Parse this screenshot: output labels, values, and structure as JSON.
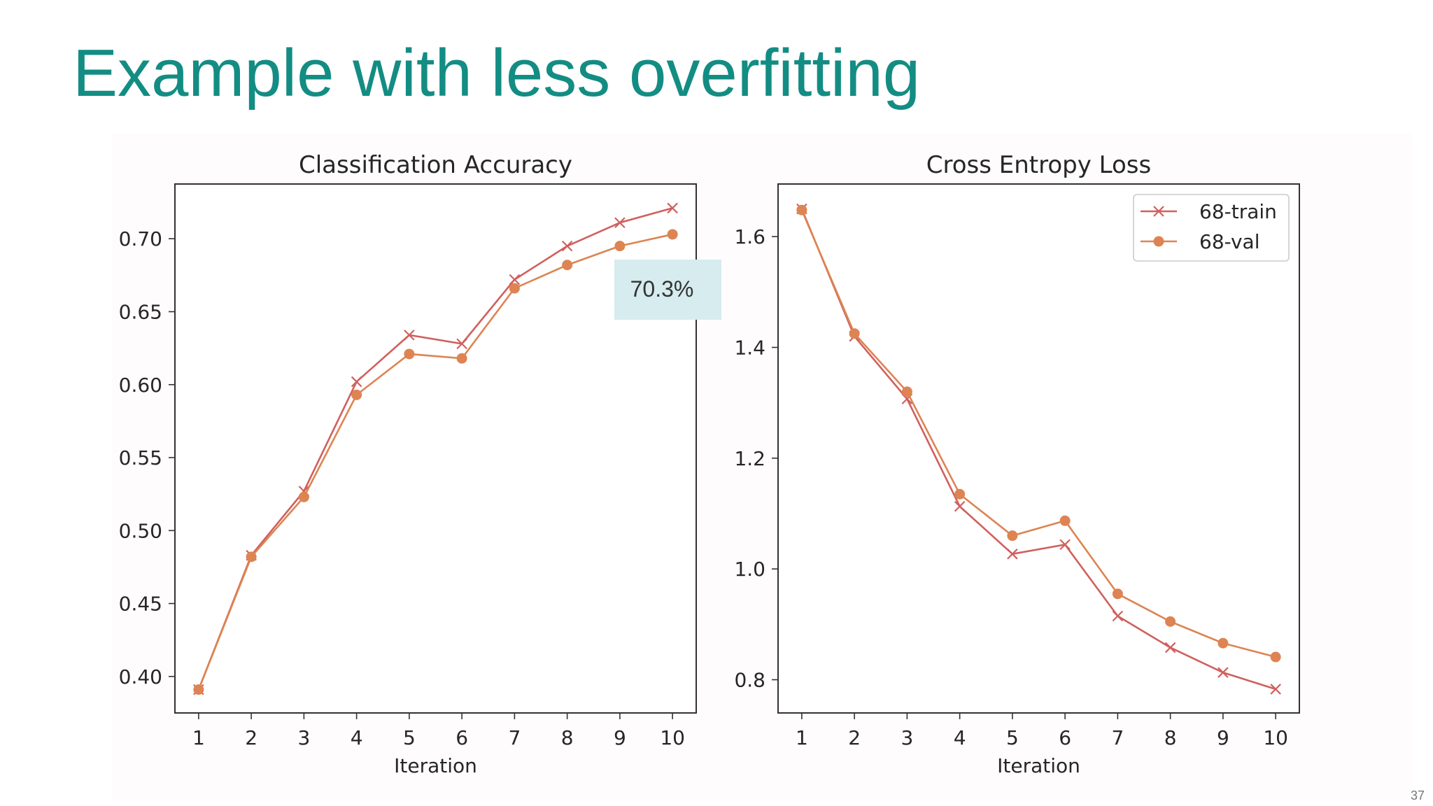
{
  "slide": {
    "title": "Example with less overfitting",
    "page_number": "37",
    "callout_text": "70.3%"
  },
  "colors": {
    "title": "#138d83",
    "train": "#d0605e",
    "val": "#dd8452",
    "callout_bg": "#d6ecef"
  },
  "chart_data": [
    {
      "type": "line",
      "title": "Classification Accuracy",
      "xlabel": "Iteration",
      "ylabel": "",
      "x": [
        1,
        2,
        3,
        4,
        5,
        6,
        7,
        8,
        9,
        10
      ],
      "xticks": [
        "1",
        "2",
        "3",
        "4",
        "5",
        "6",
        "7",
        "8",
        "9",
        "10"
      ],
      "yticks": [
        "0.40",
        "0.45",
        "0.50",
        "0.55",
        "0.60",
        "0.65",
        "0.70"
      ],
      "ytick_values": [
        0.4,
        0.45,
        0.5,
        0.55,
        0.6,
        0.65,
        0.7
      ],
      "xlim": [
        0.55,
        10.45
      ],
      "ylim": [
        0.375,
        0.7375
      ],
      "legend": false,
      "series": [
        {
          "name": "68-train",
          "marker": "x",
          "values": [
            0.391,
            0.483,
            0.527,
            0.602,
            0.634,
            0.628,
            0.672,
            0.695,
            0.711,
            0.721
          ]
        },
        {
          "name": "68-val",
          "marker": "o",
          "values": [
            0.391,
            0.482,
            0.523,
            0.593,
            0.621,
            0.618,
            0.666,
            0.682,
            0.695,
            0.703
          ]
        }
      ]
    },
    {
      "type": "line",
      "title": "Cross Entropy Loss",
      "xlabel": "Iteration",
      "ylabel": "",
      "x": [
        1,
        2,
        3,
        4,
        5,
        6,
        7,
        8,
        9,
        10
      ],
      "xticks": [
        "1",
        "2",
        "3",
        "4",
        "5",
        "6",
        "7",
        "8",
        "9",
        "10"
      ],
      "yticks": [
        "0.8",
        "1.0",
        "1.2",
        "1.4",
        "1.6"
      ],
      "ytick_values": [
        0.8,
        1.0,
        1.2,
        1.4,
        1.6
      ],
      "xlim": [
        0.55,
        10.45
      ],
      "ylim": [
        0.74,
        1.695
      ],
      "legend": true,
      "legend_position": "upper right",
      "series": [
        {
          "name": "68-train",
          "marker": "x",
          "values": [
            1.65,
            1.42,
            1.307,
            1.113,
            1.027,
            1.044,
            0.915,
            0.858,
            0.813,
            0.783
          ]
        },
        {
          "name": "68-val",
          "marker": "o",
          "values": [
            1.648,
            1.425,
            1.32,
            1.135,
            1.06,
            1.087,
            0.955,
            0.905,
            0.866,
            0.841
          ]
        }
      ]
    }
  ]
}
